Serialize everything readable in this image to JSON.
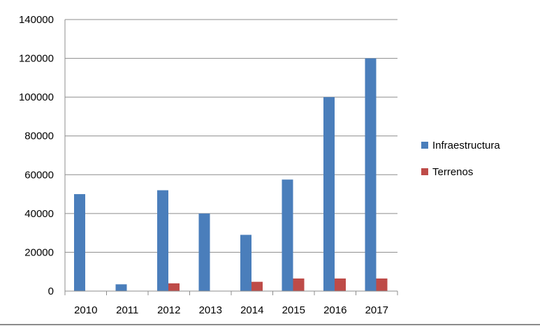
{
  "chart_data": {
    "type": "bar",
    "categories": [
      "2010",
      "2011",
      "2012",
      "2013",
      "2014",
      "2015",
      "2016",
      "2017"
    ],
    "series": [
      {
        "name": "Infraestructura",
        "values": [
          50000,
          3500,
          52000,
          40000,
          29000,
          57500,
          100000,
          120000
        ],
        "color": "#4a7ebb"
      },
      {
        "name": "Terrenos",
        "values": [
          0,
          0,
          4000,
          0,
          4800,
          6500,
          6500,
          6500
        ],
        "color": "#be4b48"
      }
    ],
    "ylim": [
      0,
      140000
    ],
    "yticks": [
      0,
      20000,
      40000,
      60000,
      80000,
      100000,
      120000,
      140000
    ],
    "grid": true,
    "legend_position": "right"
  }
}
